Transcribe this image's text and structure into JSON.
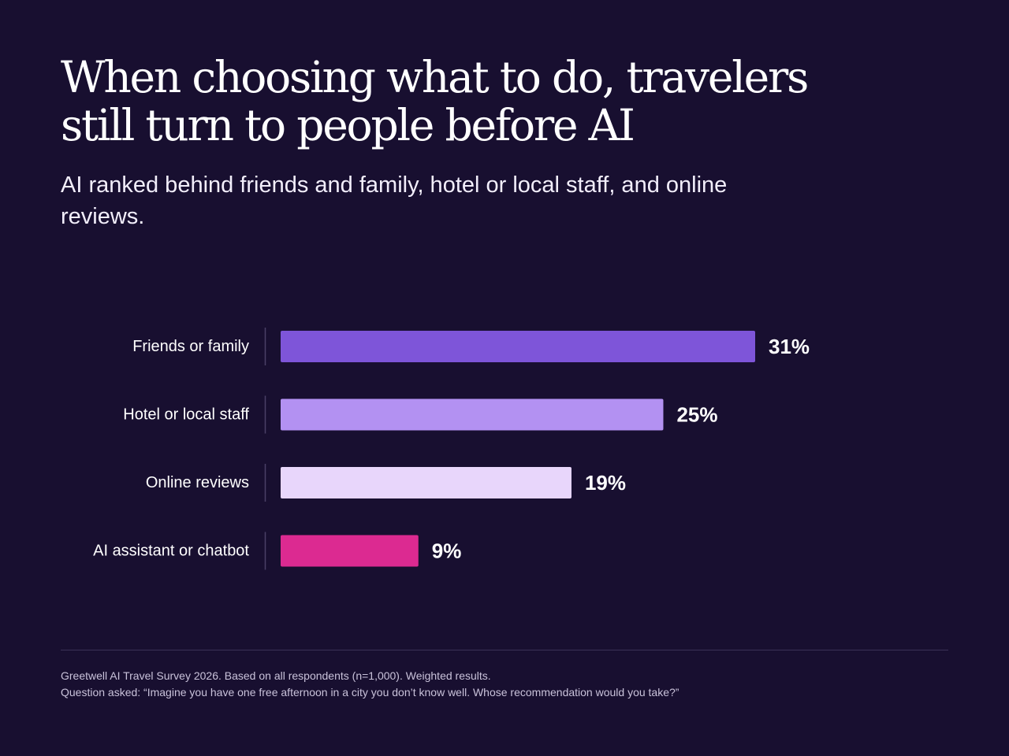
{
  "title": "When choosing what to do, travelers still turn to people before AI",
  "subtitle": "AI ranked behind friends and family, hotel or local staff, and online reviews.",
  "chart_data": {
    "type": "bar",
    "orientation": "horizontal",
    "categories": [
      "Friends or family",
      "Hotel or local staff",
      "Online reviews",
      "AI assistant or chatbot"
    ],
    "values": [
      31,
      25,
      19,
      9
    ],
    "value_labels": [
      "31%",
      "25%",
      "19%",
      "9%"
    ],
    "unit": "%",
    "colors": [
      "#7e55d9",
      "#b391f2",
      "#e8d6fb",
      "#dc2a91"
    ],
    "xlim": [
      0,
      31
    ],
    "grid": false,
    "legend": "none"
  },
  "footnote": {
    "source": "Greetwell AI Travel Survey 2026. Based on all respondents (n=1,000). Weighted results.",
    "question": "Question asked: “Imagine you have one free afternoon in a city you don’t know well. Whose recommendation would you take?”"
  },
  "colors": {
    "background": "#180f30",
    "text": "#ffffff",
    "axis": "#4a4066"
  }
}
